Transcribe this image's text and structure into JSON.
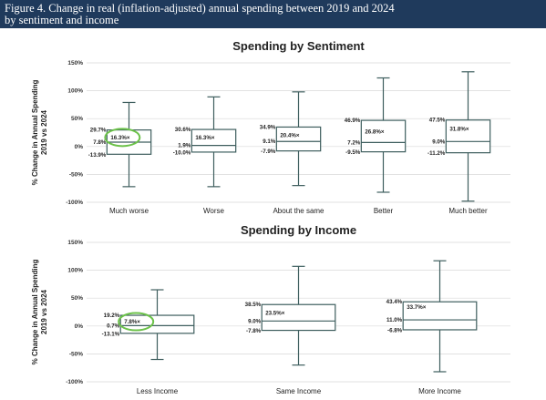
{
  "figure": {
    "title_line1": "Figure 4. Change in real (inflation-adjusted) annual spending between 2019 and 2024",
    "title_line2": "by sentiment and income"
  },
  "chart_data": [
    {
      "type": "box",
      "title": "Spending by Sentiment",
      "ylabel_line1": "% Change in Annual Spending",
      "ylabel_line2": "2019 vs 2024",
      "yticks": [
        "150%",
        "100%",
        "50%",
        "0%",
        "-50%",
        "-100%"
      ],
      "ylim": [
        -100,
        150
      ],
      "grid": true,
      "categories": [
        {
          "name": "Much worse",
          "min": -72,
          "q1": -13.9,
          "median": 7.8,
          "mean": 16.3,
          "q3": 29.7,
          "max": 79,
          "labels": {
            "q3": "29.7%",
            "median": "7.8%",
            "q1": "-13.9%",
            "mean": "16.3%×"
          },
          "highlight": true
        },
        {
          "name": "Worse",
          "min": -72,
          "q1": -10.0,
          "median": 1.9,
          "mean": 16.3,
          "q3": 30.6,
          "max": 89,
          "labels": {
            "q3": "30.6%",
            "median": "1.9%",
            "q1": "-10.0%",
            "mean": "16.3%×"
          },
          "highlight": false
        },
        {
          "name": "About the same",
          "min": -70,
          "q1": -7.9,
          "median": 9.1,
          "mean": 20.4,
          "q3": 34.9,
          "max": 98,
          "labels": {
            "q3": "34.9%",
            "median": "9.1%",
            "q1": "-7.9%",
            "mean": "20.4%×"
          },
          "highlight": false
        },
        {
          "name": "Better",
          "min": -82,
          "q1": -9.5,
          "median": 7.2,
          "mean": 26.8,
          "q3": 46.9,
          "max": 123,
          "labels": {
            "q3": "46.9%",
            "median": "7.2%",
            "q1": "-9.5%",
            "mean": "26.8%×"
          },
          "highlight": false
        },
        {
          "name": "Much better",
          "min": -98,
          "q1": -11.2,
          "median": 9.0,
          "mean": 31.8,
          "q3": 47.5,
          "max": 134,
          "labels": {
            "q3": "47.5%",
            "median": "9.0%",
            "q1": "-11.2%",
            "mean": "31.8%×"
          },
          "highlight": false
        }
      ]
    },
    {
      "type": "box",
      "title": "Spending by Income",
      "ylabel_line1": "% Change in Annual Spending",
      "ylabel_line2": "2019 vs 2024",
      "yticks": [
        "150%",
        "100%",
        "50%",
        "0%",
        "-50%",
        "-100%"
      ],
      "ylim": [
        -100,
        150
      ],
      "grid": true,
      "categories": [
        {
          "name": "Less Income",
          "min": -60,
          "q1": -13.1,
          "median": 0.7,
          "mean": 7.8,
          "q3": 19.2,
          "max": 65,
          "labels": {
            "q3": "19.2%",
            "median": "0.7%",
            "q1": "-13.1%",
            "mean": "7.8%×"
          },
          "highlight": true
        },
        {
          "name": "Same Income",
          "min": -70,
          "q1": -7.8,
          "median": 9.0,
          "mean": 23.5,
          "q3": 38.5,
          "max": 107,
          "labels": {
            "q3": "38.5%",
            "median": "9.0%",
            "q1": "-7.8%",
            "mean": "23.5%×"
          },
          "highlight": false
        },
        {
          "name": "More Income",
          "min": -82,
          "q1": -6.8,
          "median": 11.0,
          "mean": 33.7,
          "q3": 43.4,
          "max": 117,
          "labels": {
            "q3": "43.4%",
            "median": "11.0%",
            "q1": "-6.8%",
            "mean": "33.7%×"
          },
          "highlight": false
        }
      ]
    }
  ]
}
